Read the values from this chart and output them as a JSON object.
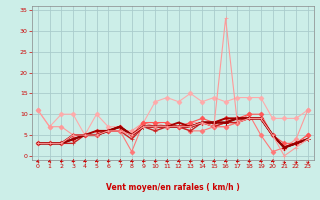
{
  "bg_color": "#cceee8",
  "grid_color": "#aacccc",
  "xlabel": "Vent moyen/en rafales ( km/h )",
  "xlabel_color": "#cc0000",
  "ylabel_color": "#cc0000",
  "xlim": [
    -0.5,
    23.5
  ],
  "ylim": [
    -1,
    36
  ],
  "yticks": [
    0,
    5,
    10,
    15,
    20,
    25,
    30,
    35
  ],
  "xticks": [
    0,
    1,
    2,
    3,
    4,
    5,
    6,
    7,
    8,
    9,
    10,
    11,
    12,
    13,
    14,
    15,
    16,
    17,
    18,
    19,
    20,
    21,
    22,
    23
  ],
  "x": [
    0,
    1,
    2,
    3,
    4,
    5,
    6,
    7,
    8,
    9,
    10,
    11,
    12,
    13,
    14,
    15,
    16,
    17,
    18,
    19,
    20,
    21,
    22,
    23
  ],
  "series": [
    {
      "y": [
        11,
        7,
        10,
        10,
        5,
        10,
        7,
        7,
        5,
        8,
        13,
        14,
        13,
        15,
        13,
        14,
        13,
        14,
        14,
        14,
        9,
        9,
        9,
        11
      ],
      "color": "#ffaaaa",
      "lw": 0.8,
      "marker": "D",
      "ms": 2.5
    },
    {
      "y": [
        11,
        7,
        7,
        5,
        5,
        5,
        6,
        6,
        6,
        8,
        8,
        7,
        7,
        8,
        8,
        7,
        7,
        8,
        9,
        9,
        5,
        2,
        4,
        11
      ],
      "color": "#ff9999",
      "lw": 0.8,
      "marker": "D",
      "ms": 2.5
    },
    {
      "y": [
        3,
        3,
        3,
        4,
        5,
        5,
        6,
        6,
        1,
        8,
        7,
        7,
        7,
        6,
        6,
        7,
        7,
        8,
        10,
        5,
        1,
        2,
        3,
        5
      ],
      "color": "#ff7777",
      "lw": 0.8,
      "marker": "D",
      "ms": 2.5
    },
    {
      "y": [
        3,
        3,
        3,
        4,
        5,
        6,
        6,
        7,
        5,
        8,
        8,
        8,
        7,
        8,
        9,
        8,
        9,
        9,
        10,
        10,
        5,
        3,
        3,
        5
      ],
      "color": "#ff5555",
      "lw": 0.8,
      "marker": "D",
      "ms": 2.5
    },
    {
      "y": [
        3,
        3,
        3,
        5,
        5,
        5,
        6,
        6,
        5,
        7,
        7,
        7,
        7,
        7,
        8,
        7,
        8,
        8,
        9,
        9,
        5,
        2,
        3,
        4
      ],
      "color": "#ee4444",
      "lw": 0.8,
      "marker": "+",
      "ms": 3
    },
    {
      "y": [
        3,
        3,
        3,
        4,
        5,
        5,
        6,
        7,
        5,
        7,
        7,
        7,
        7,
        7,
        8,
        8,
        8,
        9,
        9,
        9,
        5,
        2,
        3,
        4
      ],
      "color": "#dd3333",
      "lw": 0.8,
      "marker": "+",
      "ms": 3
    },
    {
      "y": [
        3,
        3,
        3,
        3,
        5,
        5,
        6,
        6,
        4,
        7,
        6,
        7,
        7,
        6,
        8,
        7,
        8,
        8,
        9,
        9,
        5,
        2,
        3,
        4
      ],
      "color": "#cc2222",
      "lw": 1.0,
      "marker": "+",
      "ms": 3
    },
    {
      "y": [
        3,
        3,
        3,
        4,
        5,
        5,
        6,
        7,
        5,
        7,
        7,
        7,
        7,
        7,
        8,
        8,
        8,
        9,
        9,
        9,
        5,
        2,
        3,
        4
      ],
      "color": "#bb1111",
      "lw": 1.2,
      "marker": "+",
      "ms": 3
    },
    {
      "y": [
        3,
        3,
        3,
        5,
        5,
        6,
        6,
        7,
        5,
        7,
        7,
        7,
        8,
        7,
        8,
        8,
        9,
        9,
        9,
        9,
        5,
        2,
        3,
        4
      ],
      "color": "#aa0000",
      "lw": 1.4,
      "marker": "+",
      "ms": 3
    },
    {
      "y": [
        3,
        3,
        3,
        4,
        5,
        5,
        6,
        7,
        5,
        7,
        7,
        7,
        7,
        7,
        8,
        8,
        8,
        9,
        9,
        9,
        5,
        2,
        3,
        4
      ],
      "color": "#990000",
      "lw": 1.6,
      "marker": "+",
      "ms": 3
    }
  ],
  "spike_series": {
    "y": [
      3,
      3,
      3,
      5,
      5,
      5,
      6,
      6,
      5,
      7,
      7,
      7,
      7,
      7,
      8,
      7,
      33,
      8,
      9,
      9,
      5,
      0,
      2,
      4
    ],
    "color": "#ff9999",
    "lw": 0.8,
    "marker": "+",
    "ms": 3
  },
  "wind_angles": [
    225,
    225,
    210,
    210,
    210,
    210,
    210,
    210,
    210,
    210,
    210,
    210,
    210,
    210,
    210,
    210,
    210,
    210,
    210,
    210,
    210,
    45,
    45,
    45
  ]
}
